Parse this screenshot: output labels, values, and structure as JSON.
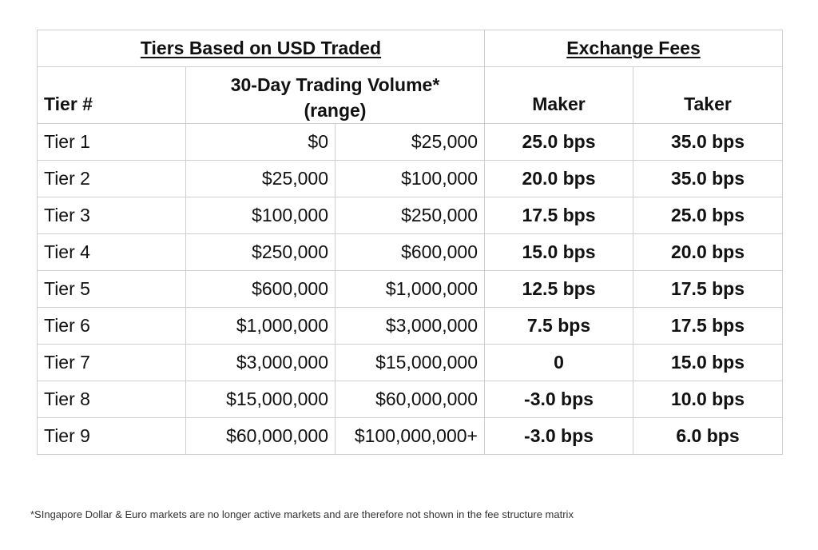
{
  "header": {
    "group_tiers": "Tiers Based on USD Traded",
    "group_fees": "Exchange Fees",
    "tier_col": "Tier #",
    "volume_line1": "30-Day Trading Volume*",
    "volume_line2": "(range)",
    "maker_col": "Maker",
    "taker_col": "Taker"
  },
  "rows": [
    {
      "tier": "Tier 1",
      "min": "$0",
      "max": "$25,000",
      "maker": "25.0 bps",
      "taker": "35.0 bps"
    },
    {
      "tier": "Tier 2",
      "min": "$25,000",
      "max": "$100,000",
      "maker": "20.0 bps",
      "taker": "35.0 bps"
    },
    {
      "tier": "Tier 3",
      "min": "$100,000",
      "max": "$250,000",
      "maker": "17.5 bps",
      "taker": "25.0 bps"
    },
    {
      "tier": "Tier 4",
      "min": "$250,000",
      "max": "$600,000",
      "maker": "15.0 bps",
      "taker": "20.0 bps"
    },
    {
      "tier": "Tier 5",
      "min": "$600,000",
      "max": "$1,000,000",
      "maker": "12.5 bps",
      "taker": "17.5 bps"
    },
    {
      "tier": "Tier 6",
      "min": "$1,000,000",
      "max": "$3,000,000",
      "maker": "7.5 bps",
      "taker": "17.5 bps"
    },
    {
      "tier": "Tier 7",
      "min": "$3,000,000",
      "max": "$15,000,000",
      "maker": "0",
      "taker": "15.0 bps"
    },
    {
      "tier": "Tier 8",
      "min": "$15,000,000",
      "max": "$60,000,000",
      "maker": "-3.0 bps",
      "taker": "10.0 bps"
    },
    {
      "tier": "Tier 9",
      "min": "$60,000,000",
      "max": "$100,000,000+",
      "maker": "-3.0 bps",
      "taker": "6.0 bps"
    }
  ],
  "footnote": "*SIngapore Dollar & Euro markets are no longer active markets and are therefore not shown in the fee structure matrix"
}
